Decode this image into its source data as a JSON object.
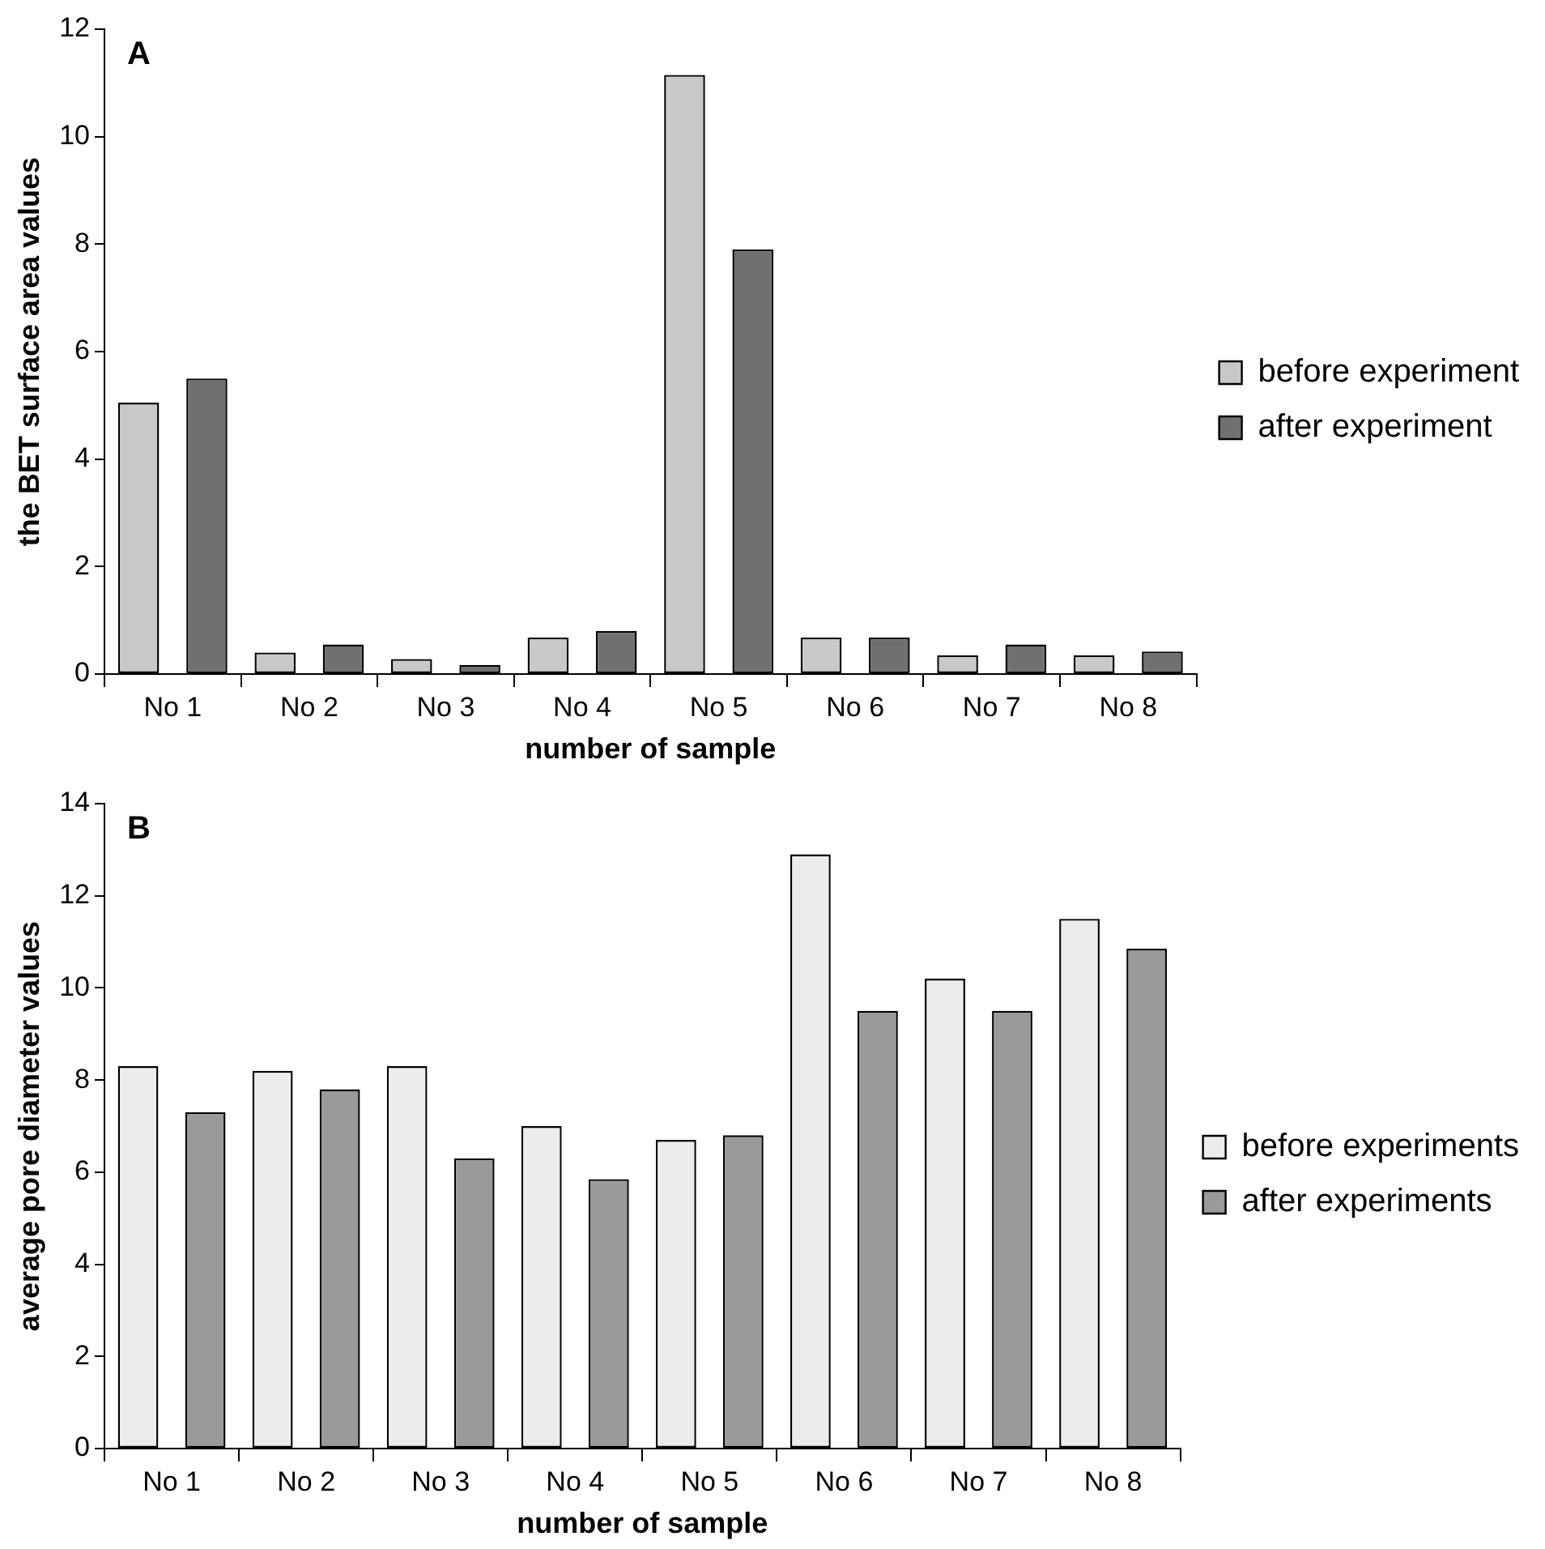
{
  "chart_data": [
    {
      "type": "bar",
      "title": "A",
      "xlabel": "number of sample",
      "ylabel": "the BET surface area values",
      "categories": [
        "No 1",
        "No 2",
        "No 3",
        "No 4",
        "No 5",
        "No 6",
        "No 7",
        "No 8"
      ],
      "series": [
        {
          "name": "before experiment",
          "color": "#c8c8c8",
          "values": [
            5.05,
            0.4,
            0.28,
            0.68,
            11.15,
            0.68,
            0.35,
            0.35
          ]
        },
        {
          "name": "after experiment",
          "color": "#707070",
          "values": [
            5.5,
            0.55,
            0.17,
            0.8,
            7.9,
            0.68,
            0.55,
            0.42
          ]
        }
      ],
      "ylim": [
        0,
        12
      ],
      "yticks": [
        0,
        2,
        4,
        6,
        8,
        10,
        12
      ],
      "grid": false,
      "legend": "right"
    },
    {
      "type": "bar",
      "title": "B",
      "xlabel": "number of sample",
      "ylabel": "average pore diameter values",
      "categories": [
        "No 1",
        "No 2",
        "No 3",
        "No 4",
        "No 5",
        "No 6",
        "No 7",
        "No 8"
      ],
      "series": [
        {
          "name": "before experiments",
          "color": "#ececec",
          "values": [
            8.3,
            8.2,
            8.3,
            7.0,
            6.7,
            12.9,
            10.2,
            11.5
          ]
        },
        {
          "name": "after experiments",
          "color": "#9a9a9a",
          "values": [
            7.3,
            7.8,
            6.3,
            5.85,
            6.8,
            9.5,
            9.5,
            10.85
          ]
        }
      ],
      "ylim": [
        0,
        14
      ],
      "yticks": [
        0,
        2,
        4,
        6,
        8,
        10,
        12,
        14
      ],
      "grid": false,
      "legend": "right"
    }
  ]
}
